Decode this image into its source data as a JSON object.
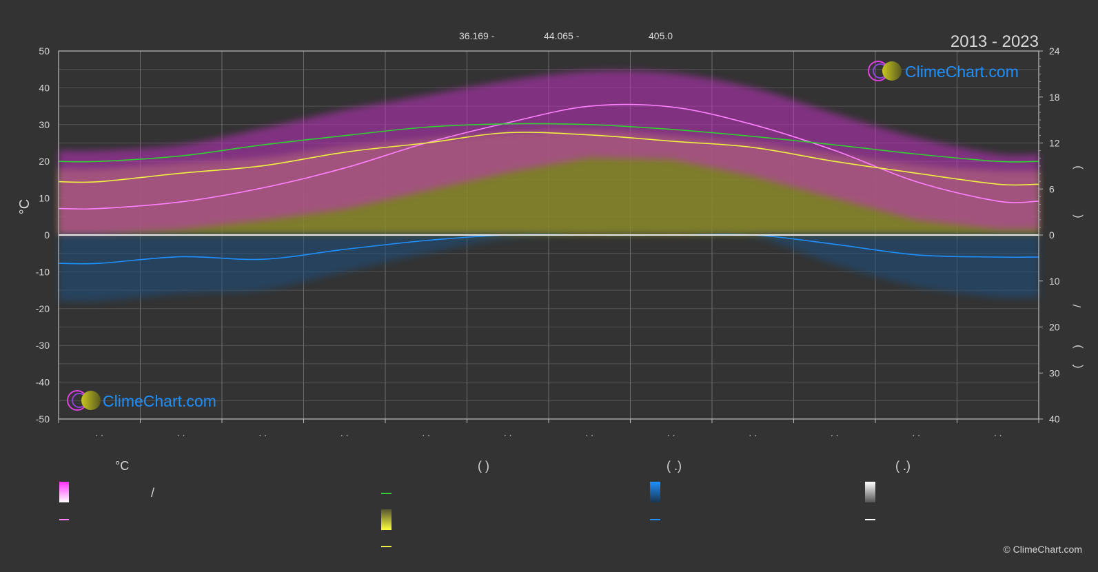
{
  "header": {
    "years": "2013 - 2023",
    "coord_lat": "36.169 -",
    "coord_lon": "44.065 -",
    "elevation": "405.0"
  },
  "logo": {
    "text": "ClimeChart.com"
  },
  "copyright": "© ClimeChart.com",
  "chart_data": {
    "type": "line",
    "x": [
      "1",
      "2",
      "3",
      "4",
      "5",
      "6",
      "7",
      "8",
      "9",
      "10",
      "11",
      "12"
    ],
    "xtick_labels": [
      ". .",
      ". .",
      ". .",
      ". .",
      ". .",
      ". .",
      ". .",
      ". .",
      ". .",
      ". .",
      ". .",
      ". ."
    ],
    "ylabel_left": "°C",
    "ylim_left": [
      -50,
      50
    ],
    "yticks_left": [
      50,
      40,
      30,
      20,
      10,
      0,
      -10,
      -20,
      -30,
      -40,
      -50
    ],
    "ylim_right_sun": [
      0,
      24
    ],
    "yticks_right_sun": [
      24,
      18,
      12,
      6,
      0
    ],
    "ylim_right_precip": [
      0,
      40
    ],
    "yticks_right_precip": [
      10,
      20,
      30,
      40
    ],
    "right_axis_marks": [
      ")",
      "(",
      "/",
      ")",
      "(",
      "."
    ],
    "grid": true,
    "series": [
      {
        "values": [
          7.2,
          9.0,
          12.8,
          18.2,
          25.0,
          30.5,
          35.0,
          34.8,
          30.0,
          23.0,
          14.5,
          9.2
        ]
      },
      {
        "values": [
          14.5,
          16.8,
          18.8,
          22.5,
          25.0,
          27.8,
          27.2,
          25.5,
          23.8,
          20.0,
          16.8,
          13.8
        ]
      },
      {
        "values": [
          20.0,
          21.5,
          24.5,
          27.0,
          29.3,
          30.2,
          30.0,
          28.7,
          26.8,
          24.5,
          22.0,
          20.0
        ]
      },
      {
        "values": [
          -7.7,
          -5.9,
          -6.6,
          -3.9,
          -1.5,
          0.0,
          0.0,
          0.0,
          0.0,
          -2.5,
          -5.4,
          -6.0
        ]
      }
    ],
    "band_max_temp": [
      23.0,
      24.5,
      29.0,
      34.0,
      38.0,
      42.0,
      44.5,
      44.0,
      40.0,
      33.0,
      26.5,
      22.0
    ],
    "band_min_temp": [
      0.0,
      1.5,
      4.0,
      7.0,
      12.0,
      17.0,
      21.0,
      20.5,
      16.0,
      10.0,
      4.0,
      1.5
    ],
    "band_sun": [
      18.0,
      19.5,
      21.0,
      24.0,
      26.0,
      28.0,
      28.5,
      27.0,
      25.0,
      22.0,
      19.0,
      17.5
    ],
    "band_precip": [
      -18.0,
      -16.0,
      -15.0,
      -10.0,
      -5.0,
      -1.0,
      0.0,
      0.0,
      -0.5,
      -8.0,
      -14.0,
      -17.0
    ]
  },
  "legend": {
    "col1_title": "°C",
    "col2_title": "(           )",
    "col3_title": "(    .)",
    "col4_title": "(    .)",
    "slash": "/"
  },
  "colors": {
    "background": "#333333",
    "magenta": "#e040e0",
    "pink_line": "#ff80ff",
    "yellow": "#f0f040",
    "green": "#30d030",
    "blue": "#1e90ff",
    "white": "#ffffff",
    "grid": "#555555",
    "logo_text": "#1e90ff"
  }
}
